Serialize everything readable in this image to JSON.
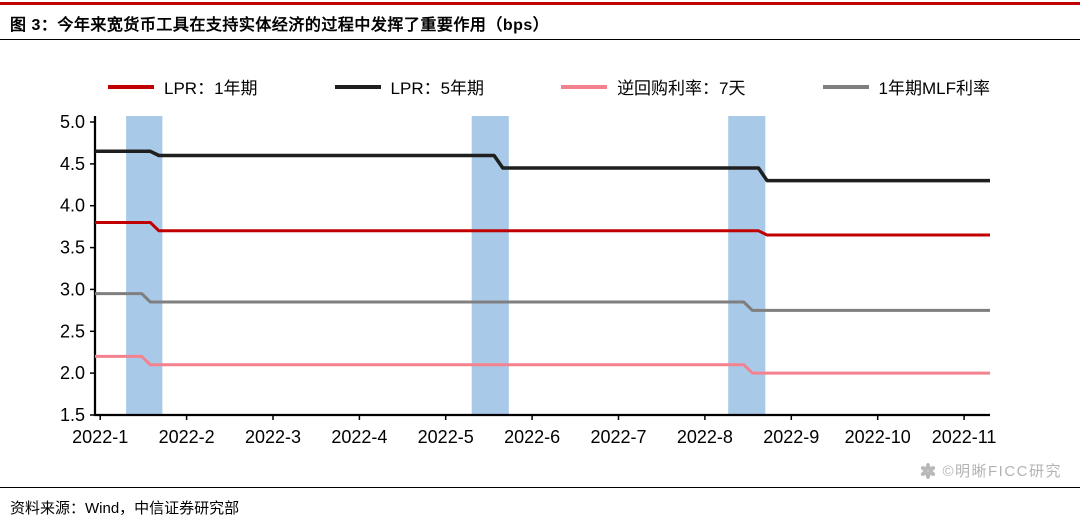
{
  "header": {
    "title": "图 3：今年来宽货币工具在支持实体经济的过程中发挥了重要作用（bps）"
  },
  "legend": {
    "items": [
      {
        "label": "LPR：1年期",
        "color": "#c00000"
      },
      {
        "label": "LPR：5年期",
        "color": "#1f1f1f"
      },
      {
        "label": "逆回购利率：7天",
        "color": "#f4828e"
      },
      {
        "label": "1年期MLF利率",
        "color": "#7f7f7f"
      }
    ]
  },
  "chart_data": {
    "type": "line",
    "title": "",
    "xlabel": "",
    "ylabel": "",
    "grid": false,
    "legend_position": "top",
    "xlim": [
      0.94,
      11.3
    ],
    "ylim": [
      1.5,
      5.0
    ],
    "yticks": [
      1.5,
      2.0,
      2.5,
      3.0,
      3.5,
      4.0,
      4.5,
      5.0
    ],
    "xticks": [
      1,
      2,
      3,
      4,
      5,
      6,
      7,
      8,
      9,
      10,
      11
    ],
    "xtick_labels": [
      "2022-1",
      "2022-2",
      "2022-3",
      "2022-4",
      "2022-5",
      "2022-6",
      "2022-7",
      "2022-8",
      "2022-9",
      "2022-10",
      "2022-11"
    ],
    "highlight_bands": {
      "color": "#a9c9e8",
      "ranges": [
        [
          1.3,
          1.72
        ],
        [
          5.3,
          5.73
        ],
        [
          8.27,
          8.7
        ]
      ]
    },
    "series": [
      {
        "name": "LPR：1年期",
        "color": "#c00000",
        "width": 3,
        "points": [
          [
            0.94,
            3.8
          ],
          [
            1.58,
            3.8
          ],
          [
            1.68,
            3.7
          ],
          [
            8.62,
            3.7
          ],
          [
            8.72,
            3.65
          ],
          [
            11.3,
            3.65
          ]
        ]
      },
      {
        "name": "LPR：5年期",
        "color": "#1f1f1f",
        "width": 3.5,
        "points": [
          [
            0.94,
            4.65
          ],
          [
            1.58,
            4.65
          ],
          [
            1.68,
            4.6
          ],
          [
            5.56,
            4.6
          ],
          [
            5.66,
            4.45
          ],
          [
            8.62,
            4.45
          ],
          [
            8.72,
            4.3
          ],
          [
            11.3,
            4.3
          ]
        ]
      },
      {
        "name": "逆回购利率：7天",
        "color": "#f4828e",
        "width": 3,
        "points": [
          [
            0.94,
            2.2
          ],
          [
            1.48,
            2.2
          ],
          [
            1.58,
            2.1
          ],
          [
            8.45,
            2.1
          ],
          [
            8.55,
            2.0
          ],
          [
            11.3,
            2.0
          ]
        ]
      },
      {
        "name": "1年期MLF利率",
        "color": "#7f7f7f",
        "width": 3,
        "points": [
          [
            0.94,
            2.95
          ],
          [
            1.48,
            2.95
          ],
          [
            1.58,
            2.85
          ],
          [
            8.45,
            2.85
          ],
          [
            8.55,
            2.75
          ],
          [
            11.3,
            2.75
          ]
        ]
      }
    ]
  },
  "footer": {
    "source": "资料来源：Wind，中信证券研究部",
    "watermark": "©明晰FICC研究"
  }
}
